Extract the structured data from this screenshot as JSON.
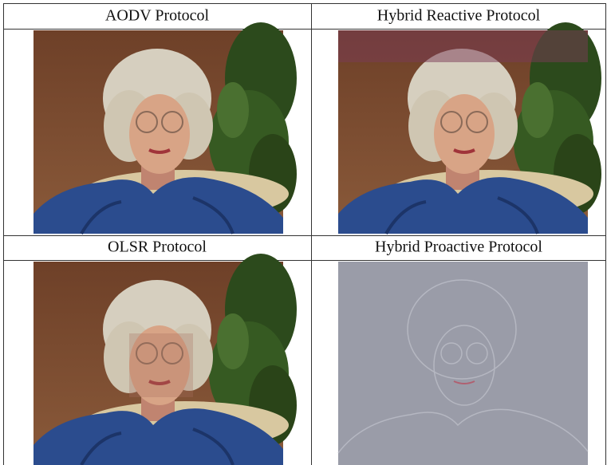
{
  "table": {
    "rows": [
      [
        "AODV Protocol",
        "Hybrid Reactive Protocol"
      ],
      [
        "OLSR Protocol",
        "Hybrid Proactive Protocol"
      ]
    ]
  }
}
